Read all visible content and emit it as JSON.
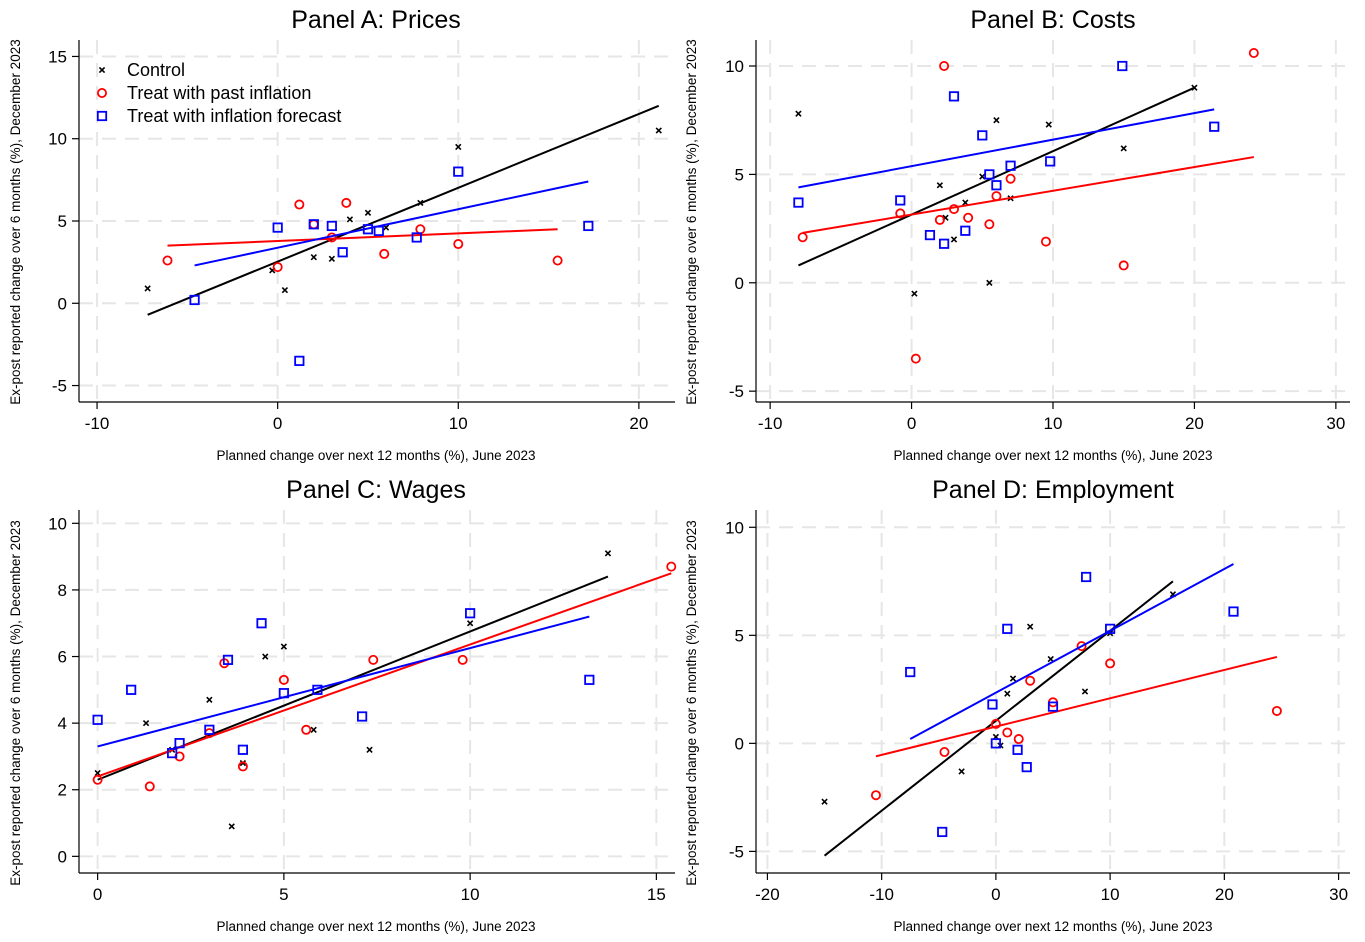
{
  "series_styles": {
    "control": {
      "name": "Control",
      "color": "#000000",
      "marker": "x"
    },
    "past": {
      "name": "Treat with past inflation",
      "color": "#ff0000",
      "marker": "circle"
    },
    "forecast": {
      "name": "Treat with inflation forecast",
      "color": "#0000ff",
      "marker": "square"
    }
  },
  "legend": {
    "panel": 0,
    "placement": "top-left"
  },
  "chart_data": [
    {
      "type": "scatter",
      "title": "Panel A: Prices",
      "xlabel": "Planned change over next 12 months (%), June 2023",
      "ylabel": "Ex-post reported change over 6 months (%), December 2023",
      "xlim": [
        -11,
        22
      ],
      "ylim": [
        -6,
        16
      ],
      "xticks": [
        -10,
        0,
        10,
        20
      ],
      "yticks": [
        -5,
        0,
        5,
        10,
        15
      ],
      "grid": true,
      "series": [
        {
          "key": "control",
          "points": [
            [
              -7.2,
              0.9
            ],
            [
              -0.3,
              2.0
            ],
            [
              0.4,
              0.8
            ],
            [
              2.0,
              2.8
            ],
            [
              3.0,
              2.7
            ],
            [
              4.0,
              5.1
            ],
            [
              5.0,
              5.5
            ],
            [
              6.0,
              4.6
            ],
            [
              7.9,
              6.1
            ],
            [
              10.0,
              9.5
            ],
            [
              21.1,
              10.5
            ]
          ],
          "fit": [
            [
              -7.2,
              -0.7
            ],
            [
              21.1,
              12.0
            ]
          ]
        },
        {
          "key": "past",
          "points": [
            [
              -6.1,
              2.6
            ],
            [
              0.0,
              2.2
            ],
            [
              1.2,
              6.0
            ],
            [
              2.0,
              4.8
            ],
            [
              3.0,
              4.0
            ],
            [
              3.8,
              6.1
            ],
            [
              5.9,
              3.0
            ],
            [
              7.9,
              4.5
            ],
            [
              10.0,
              3.6
            ],
            [
              15.5,
              2.6
            ]
          ],
          "fit": [
            [
              -6.1,
              3.5
            ],
            [
              15.5,
              4.5
            ]
          ]
        },
        {
          "key": "forecast",
          "points": [
            [
              -4.6,
              0.2
            ],
            [
              0.0,
              4.6
            ],
            [
              1.2,
              -3.5
            ],
            [
              2.0,
              4.8
            ],
            [
              3.0,
              4.7
            ],
            [
              3.6,
              3.1
            ],
            [
              5.0,
              4.5
            ],
            [
              5.6,
              4.4
            ],
            [
              7.7,
              4.0
            ],
            [
              10.0,
              8.0
            ],
            [
              17.2,
              4.7
            ]
          ],
          "fit": [
            [
              -4.6,
              2.3
            ],
            [
              17.2,
              7.4
            ]
          ]
        }
      ]
    },
    {
      "type": "scatter",
      "title": "Panel B: Costs",
      "xlabel": "Planned change over next 12 months (%), June 2023",
      "ylabel": "Ex-post reported change over 6 months (%), December 2023",
      "xlim": [
        -11,
        31
      ],
      "ylim": [
        -5.5,
        11.2
      ],
      "xticks": [
        -10,
        0,
        10,
        20,
        30
      ],
      "yticks": [
        -5,
        0,
        5,
        10
      ],
      "grid": true,
      "series": [
        {
          "key": "control",
          "points": [
            [
              -8.0,
              7.8
            ],
            [
              0.2,
              -0.5
            ],
            [
              2.0,
              4.5
            ],
            [
              2.4,
              3.0
            ],
            [
              3.0,
              2.0
            ],
            [
              3.8,
              3.7
            ],
            [
              5.0,
              4.9
            ],
            [
              5.5,
              0.0
            ],
            [
              6.0,
              7.5
            ],
            [
              7.0,
              3.9
            ],
            [
              9.7,
              7.3
            ],
            [
              15.0,
              6.2
            ],
            [
              20.0,
              9.0
            ]
          ],
          "fit": [
            [
              -8.0,
              0.8
            ],
            [
              20.0,
              9.0
            ]
          ]
        },
        {
          "key": "past",
          "points": [
            [
              -7.7,
              2.1
            ],
            [
              -0.8,
              3.2
            ],
            [
              0.3,
              -3.5
            ],
            [
              2.0,
              2.9
            ],
            [
              2.3,
              10.0
            ],
            [
              3.0,
              3.4
            ],
            [
              4.0,
              3.0
            ],
            [
              5.5,
              2.7
            ],
            [
              6.0,
              4.0
            ],
            [
              7.0,
              4.8
            ],
            [
              9.5,
              1.9
            ],
            [
              15.0,
              0.8
            ],
            [
              24.2,
              10.6
            ]
          ],
          "fit": [
            [
              -7.7,
              2.3
            ],
            [
              24.2,
              5.8
            ]
          ]
        },
        {
          "key": "forecast",
          "points": [
            [
              -8.0,
              3.7
            ],
            [
              -0.8,
              3.8
            ],
            [
              1.3,
              2.2
            ],
            [
              2.3,
              1.8
            ],
            [
              3.0,
              8.6
            ],
            [
              3.8,
              2.4
            ],
            [
              5.0,
              6.8
            ],
            [
              5.5,
              5.0
            ],
            [
              6.0,
              4.5
            ],
            [
              7.0,
              5.4
            ],
            [
              9.8,
              5.6
            ],
            [
              14.9,
              10.0
            ],
            [
              21.4,
              7.2
            ]
          ],
          "fit": [
            [
              -8.0,
              4.4
            ],
            [
              21.4,
              8.0
            ]
          ]
        }
      ]
    },
    {
      "type": "scatter",
      "title": "Panel C: Wages",
      "xlabel": "Planned change over next 12 months (%), June 2023",
      "ylabel": "Ex-post reported change over 6 months (%), December 2023",
      "xlim": [
        -0.5,
        15.5
      ],
      "ylim": [
        -0.5,
        10.4
      ],
      "xticks": [
        0,
        5,
        10,
        15
      ],
      "yticks": [
        0,
        2,
        4,
        6,
        8,
        10
      ],
      "grid": true,
      "series": [
        {
          "key": "control",
          "points": [
            [
              0.0,
              2.5
            ],
            [
              1.3,
              4.0
            ],
            [
              2.0,
              3.2
            ],
            [
              3.0,
              4.7
            ],
            [
              3.6,
              0.9
            ],
            [
              3.9,
              2.8
            ],
            [
              4.5,
              6.0
            ],
            [
              5.0,
              6.3
            ],
            [
              5.8,
              3.8
            ],
            [
              7.3,
              3.2
            ],
            [
              10.0,
              7.0
            ],
            [
              13.7,
              9.1
            ]
          ],
          "fit": [
            [
              0.0,
              2.3
            ],
            [
              13.7,
              8.4
            ]
          ]
        },
        {
          "key": "past",
          "points": [
            [
              0.0,
              2.3
            ],
            [
              1.4,
              2.1
            ],
            [
              2.2,
              3.0
            ],
            [
              3.0,
              3.7
            ],
            [
              3.4,
              5.8
            ],
            [
              3.9,
              2.7
            ],
            [
              5.0,
              5.3
            ],
            [
              5.6,
              3.8
            ],
            [
              7.4,
              5.9
            ],
            [
              9.8,
              5.9
            ],
            [
              15.4,
              8.7
            ]
          ],
          "fit": [
            [
              0.0,
              2.4
            ],
            [
              15.4,
              8.5
            ]
          ]
        },
        {
          "key": "forecast",
          "points": [
            [
              0.0,
              4.1
            ],
            [
              0.9,
              5.0
            ],
            [
              2.0,
              3.1
            ],
            [
              2.2,
              3.4
            ],
            [
              3.0,
              3.8
            ],
            [
              3.5,
              5.9
            ],
            [
              3.9,
              3.2
            ],
            [
              4.4,
              7.0
            ],
            [
              5.0,
              4.9
            ],
            [
              5.9,
              5.0
            ],
            [
              7.1,
              4.2
            ],
            [
              10.0,
              7.3
            ],
            [
              13.2,
              5.3
            ]
          ],
          "fit": [
            [
              0.0,
              3.3
            ],
            [
              13.2,
              7.2
            ]
          ]
        }
      ]
    },
    {
      "type": "scatter",
      "title": "Panel D: Employment",
      "xlabel": "Planned change over next 12 months (%), June 2023",
      "ylabel": "Ex-post reported change over 6 months (%), December 2023",
      "xlim": [
        -21,
        31
      ],
      "ylim": [
        -6,
        10.8
      ],
      "xticks": [
        -20,
        -10,
        0,
        10,
        20,
        30
      ],
      "yticks": [
        -5,
        0,
        5,
        10
      ],
      "grid": true,
      "series": [
        {
          "key": "control",
          "points": [
            [
              -15.0,
              -2.7
            ],
            [
              -3.0,
              -1.3
            ],
            [
              0.0,
              0.3
            ],
            [
              0.4,
              -0.1
            ],
            [
              1.0,
              2.3
            ],
            [
              1.5,
              3.0
            ],
            [
              3.0,
              5.4
            ],
            [
              4.8,
              3.9
            ],
            [
              7.8,
              2.4
            ],
            [
              10.0,
              5.1
            ],
            [
              15.5,
              6.9
            ]
          ],
          "fit": [
            [
              -15.0,
              -5.2
            ],
            [
              15.5,
              7.5
            ]
          ]
        },
        {
          "key": "past",
          "points": [
            [
              -10.5,
              -2.4
            ],
            [
              -4.5,
              -0.4
            ],
            [
              0.0,
              0.9
            ],
            [
              1.0,
              0.5
            ],
            [
              2.0,
              0.2
            ],
            [
              3.0,
              2.9
            ],
            [
              5.0,
              1.9
            ],
            [
              7.5,
              4.5
            ],
            [
              10.0,
              3.7
            ],
            [
              24.6,
              1.5
            ]
          ],
          "fit": [
            [
              -10.5,
              -0.6
            ],
            [
              24.6,
              4.0
            ]
          ]
        },
        {
          "key": "forecast",
          "points": [
            [
              -7.5,
              3.3
            ],
            [
              -4.7,
              -4.1
            ],
            [
              -0.3,
              1.8
            ],
            [
              0.0,
              0.0
            ],
            [
              1.0,
              5.3
            ],
            [
              1.9,
              -0.3
            ],
            [
              2.7,
              -1.1
            ],
            [
              5.0,
              1.7
            ],
            [
              7.9,
              7.7
            ],
            [
              10.0,
              5.3
            ],
            [
              20.8,
              6.1
            ]
          ],
          "fit": [
            [
              -7.5,
              0.2
            ],
            [
              20.8,
              8.3
            ]
          ]
        }
      ]
    }
  ]
}
